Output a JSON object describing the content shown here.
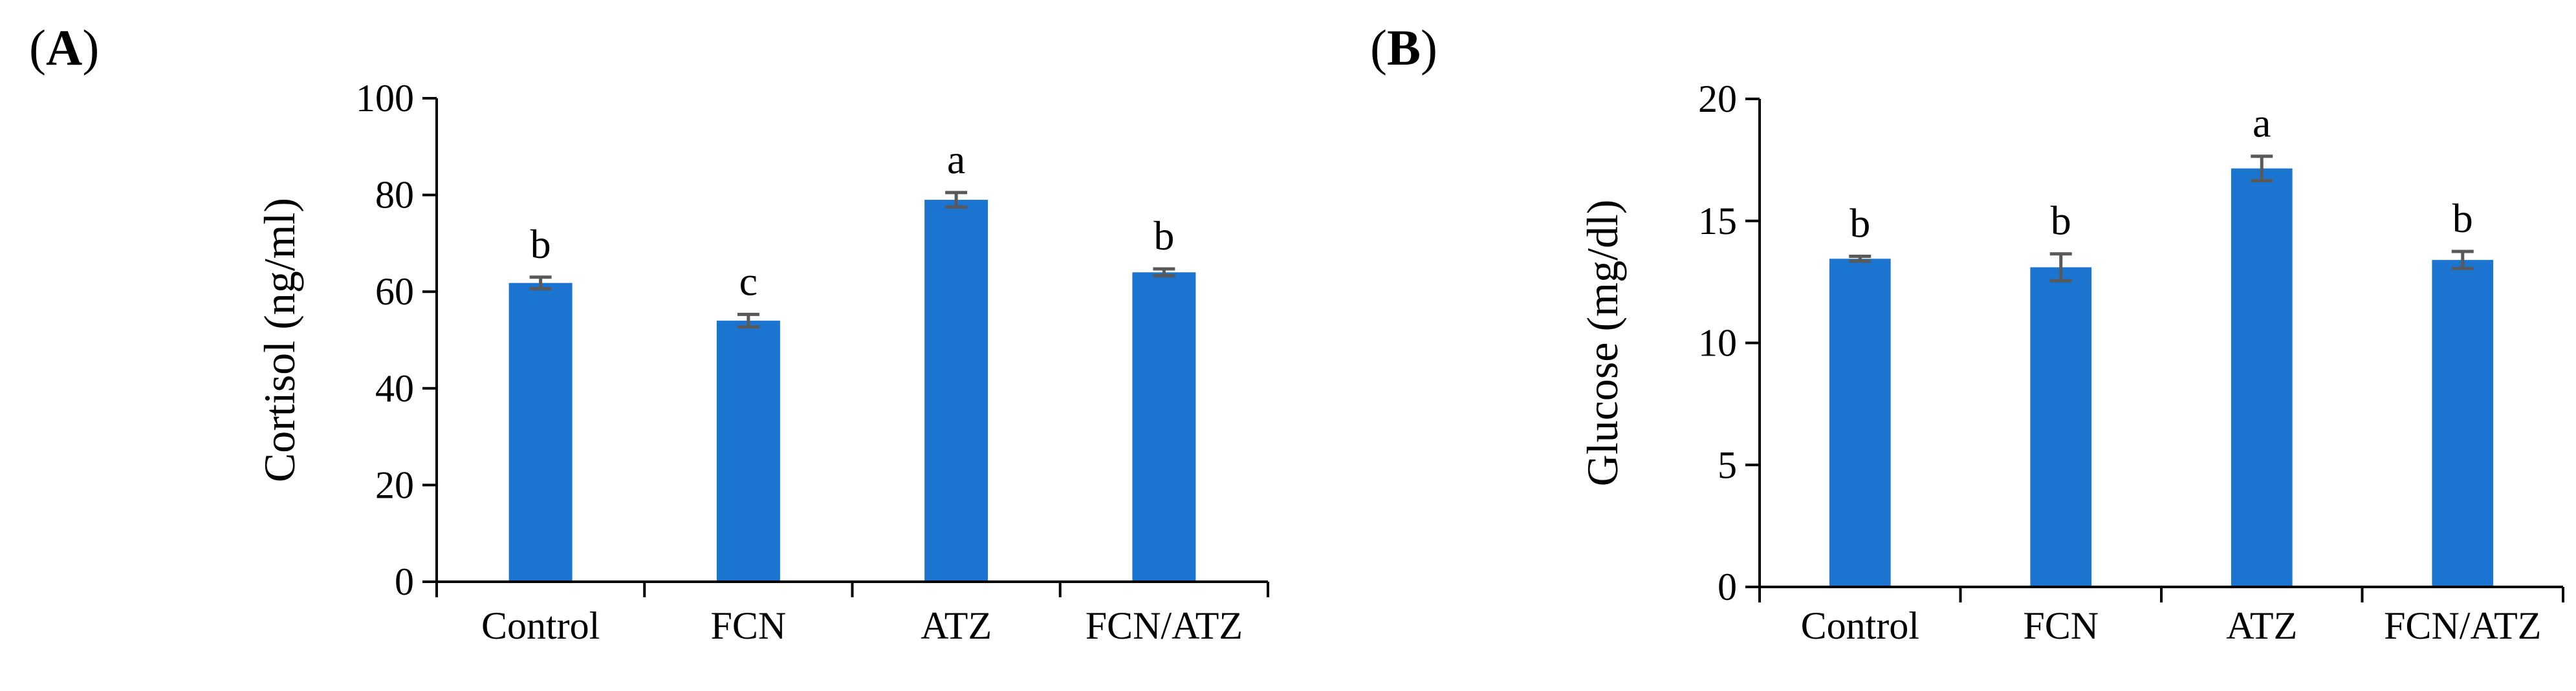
{
  "chart_data": [
    {
      "type": "bar",
      "panel_label": "(A)",
      "panel_letter": "A",
      "ylabel": "Cortisol (ng/ml)",
      "xlabel": "",
      "categories": [
        "Control",
        "FCN",
        "ATZ",
        "FCN/ATZ"
      ],
      "values": [
        61.8,
        54.0,
        79.0,
        64.0
      ],
      "errors": [
        1.2,
        1.3,
        1.5,
        0.7
      ],
      "letters": [
        "b",
        "c",
        "a",
        "b"
      ],
      "ylim": [
        0,
        100
      ],
      "yticks": [
        0,
        20,
        40,
        60,
        80,
        100
      ],
      "ytick_labels": [
        "0",
        "20",
        "40",
        "60",
        "80",
        "100"
      ],
      "bar_color": "#1b75d0",
      "error_color": "#595959",
      "grid": false,
      "legend": "none"
    },
    {
      "type": "bar",
      "panel_label": "(B)",
      "panel_letter": "B",
      "ylabel": "Glucose (mg/dl)",
      "xlabel": "",
      "categories": [
        "Control",
        "FCN",
        "ATZ",
        "FCN/ATZ"
      ],
      "values": [
        13.45,
        13.1,
        17.15,
        13.4
      ],
      "errors": [
        0.1,
        0.55,
        0.5,
        0.35
      ],
      "letters": [
        "b",
        "b",
        "a",
        "b"
      ],
      "ylim": [
        0,
        20
      ],
      "yticks": [
        0,
        5,
        10,
        15,
        20
      ],
      "ytick_labels": [
        "0",
        "5",
        "10",
        "15",
        "20"
      ],
      "bar_color": "#1b75d0",
      "error_color": "#595959",
      "grid": false,
      "legend": "none"
    }
  ]
}
